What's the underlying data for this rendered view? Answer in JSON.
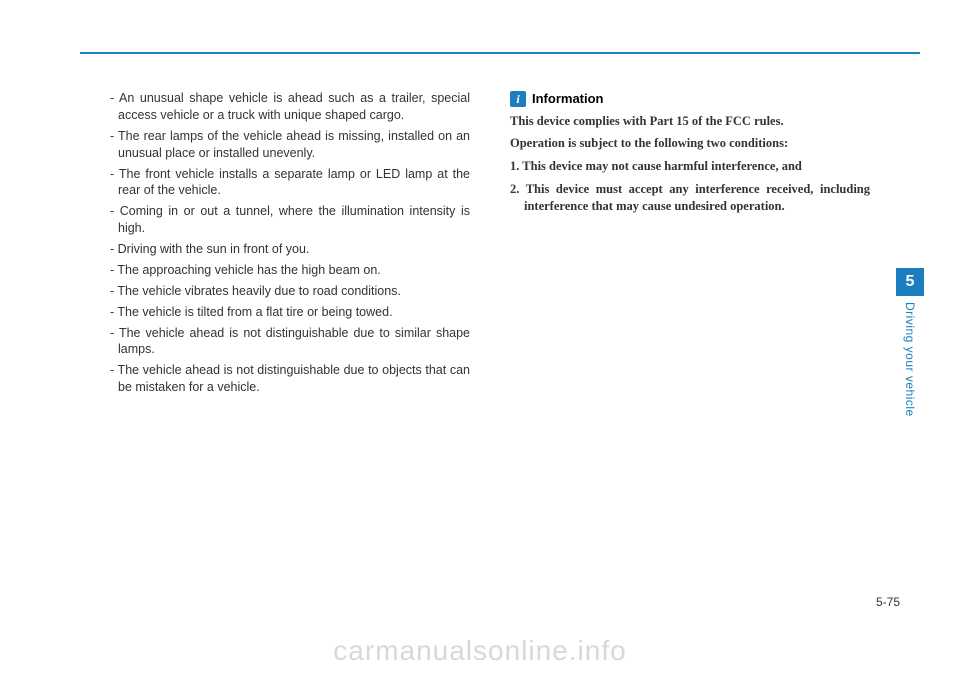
{
  "chapter": {
    "number": "5",
    "label": "Driving your vehicle"
  },
  "pageNumber": "5-75",
  "watermark": "carmanualsonline.info",
  "column1": {
    "items": [
      "- An unusual shape vehicle is ahead such as a trailer, special access vehicle or a truck with unique shaped cargo.",
      "- The rear lamps of the vehicle ahead is missing, installed on an unusual place or installed unevenly.",
      "- The front vehicle installs a separate lamp or LED lamp at the rear of the vehicle.",
      "- Coming in or out a tunnel, where the illumination intensity is high.",
      "- Driving with the sun in front of you.",
      "- The approaching vehicle has the high beam on.",
      "- The vehicle vibrates heavily due to road conditions.",
      "- The vehicle is tilted from a flat tire or being towed.",
      "- The vehicle ahead is not distinguishable due to similar shape lamps.",
      "- The vehicle ahead is not distinguishable due to objects that can be mistaken for a vehicle."
    ]
  },
  "column2": {
    "infoIcon": "i",
    "infoHeading": "Information",
    "para1": "This device complies with Part 15 of the FCC rules.",
    "para2": "Operation is subject to the following two conditions:",
    "num1": "1. This device may not cause harmful interference, and",
    "num2": "2. This device must accept any interference received, including interference that may cause undesired operation."
  }
}
